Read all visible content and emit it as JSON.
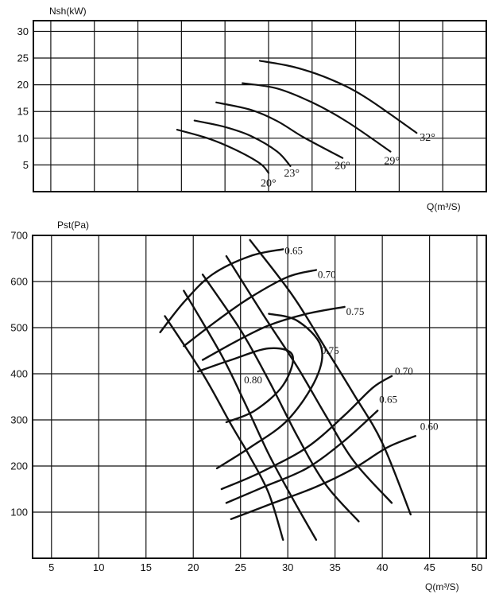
{
  "chart_data": [
    {
      "type": "line",
      "ylabel": "Nsh(kW)",
      "xlabel": "Q(m³/S)",
      "ylim": [
        0,
        32
      ],
      "xlim": [
        0,
        52
      ],
      "yticks": [
        "5",
        "10",
        "15",
        "20",
        "25",
        "30"
      ],
      "grid": true,
      "series": [
        {
          "name": "20°",
          "points": [
            [
              16.5,
              11.6
            ],
            [
              20,
              10.0
            ],
            [
              23,
              8.0
            ],
            [
              26,
              5.3
            ],
            [
              27,
              3.5
            ]
          ]
        },
        {
          "name": "23°",
          "points": [
            [
              18.5,
              13.3
            ],
            [
              22,
              12.1
            ],
            [
              25,
              10.4
            ],
            [
              28,
              7.5
            ],
            [
              29.5,
              4.8
            ]
          ]
        },
        {
          "name": "26°",
          "points": [
            [
              21,
              16.7
            ],
            [
              25,
              15.3
            ],
            [
              28,
              13.2
            ],
            [
              31,
              10.2
            ],
            [
              35.5,
              6.3
            ]
          ]
        },
        {
          "name": "29°",
          "points": [
            [
              24,
              20.3
            ],
            [
              28,
              19.3
            ],
            [
              32,
              16.7
            ],
            [
              36,
              13.1
            ],
            [
              41,
              7.5
            ]
          ]
        },
        {
          "name": "32°",
          "points": [
            [
              26,
              24.5
            ],
            [
              30,
              23.3
            ],
            [
              34,
              21.1
            ],
            [
              38,
              17.8
            ],
            [
              44,
              11.0
            ]
          ]
        }
      ]
    },
    {
      "type": "line",
      "ylabel": "Pst(Pa)",
      "xlabel": "Q(m³/S)",
      "xlim": [
        3,
        51
      ],
      "ylim": [
        0,
        700
      ],
      "xticks": [
        "5",
        "10",
        "15",
        "20",
        "25",
        "30",
        "35",
        "40",
        "45",
        "50"
      ],
      "yticks": [
        "100",
        "200",
        "300",
        "400",
        "500",
        "600",
        "700"
      ],
      "grid": true,
      "blade_angle_curves": [
        {
          "points": [
            [
              17,
              525
            ],
            [
              21,
              400
            ],
            [
              24,
              290
            ],
            [
              26,
              220
            ],
            [
              28,
              140
            ],
            [
              29.5,
              40
            ]
          ]
        },
        {
          "points": [
            [
              19,
              580
            ],
            [
              23,
              440
            ],
            [
              25.5,
              335
            ],
            [
              28,
              225
            ],
            [
              30.5,
              130
            ],
            [
              33,
              40
            ]
          ]
        },
        {
          "points": [
            [
              21,
              615
            ],
            [
              25,
              495
            ],
            [
              28,
              385
            ],
            [
              31,
              265
            ],
            [
              34,
              160
            ],
            [
              37.5,
              80
            ]
          ]
        },
        {
          "points": [
            [
              23.5,
              655
            ],
            [
              27.5,
              525
            ],
            [
              31,
              415
            ],
            [
              34,
              310
            ],
            [
              37,
              210
            ],
            [
              41,
              120
            ]
          ]
        },
        {
          "points": [
            [
              26,
              690
            ],
            [
              30.5,
              570
            ],
            [
              34,
              455
            ],
            [
              37,
              355
            ],
            [
              40,
              250
            ],
            [
              43,
              95
            ]
          ]
        }
      ],
      "efficiency_curves": [
        {
          "label": "0.65",
          "points": [
            [
              16.5,
              490
            ],
            [
              19,
              555
            ],
            [
              22,
              615
            ],
            [
              26,
              655
            ],
            [
              29.5,
              670
            ]
          ]
        },
        {
          "label": "0.70",
          "points": [
            [
              19,
              460
            ],
            [
              22.5,
              515
            ],
            [
              26,
              565
            ],
            [
              30,
              610
            ],
            [
              33,
              625
            ]
          ]
        },
        {
          "label": "0.75",
          "points": [
            [
              21,
              430
            ],
            [
              24.5,
              470
            ],
            [
              28,
              505
            ],
            [
              32,
              530
            ],
            [
              36,
              545
            ]
          ]
        },
        {
          "label": "0.80",
          "points": [
            [
              20.5,
              405
            ],
            [
              24,
              430
            ],
            [
              28,
              455
            ],
            [
              30.5,
              440
            ],
            [
              29.5,
              375
            ],
            [
              26.5,
              320
            ],
            [
              23.5,
              295
            ]
          ]
        },
        {
          "label": "0.75",
          "points": [
            [
              22.5,
              195
            ],
            [
              26,
              240
            ],
            [
              30,
              300
            ],
            [
              33,
              390
            ],
            [
              33.5,
              460
            ],
            [
              31,
              515
            ],
            [
              28,
              530
            ]
          ]
        },
        {
          "label": "0.70",
          "points": [
            [
              23,
              150
            ],
            [
              27,
              185
            ],
            [
              32,
              240
            ],
            [
              36,
              310
            ],
            [
              39,
              370
            ],
            [
              41,
              395
            ]
          ]
        },
        {
          "label": "0.65",
          "points": [
            [
              23.5,
              120
            ],
            [
              27.5,
              155
            ],
            [
              32,
              195
            ],
            [
              36,
              255
            ],
            [
              39.5,
              320
            ]
          ]
        },
        {
          "label": "0.60",
          "points": [
            [
              24,
              85
            ],
            [
              28.5,
              120
            ],
            [
              33,
              155
            ],
            [
              37,
              195
            ],
            [
              40.5,
              240
            ],
            [
              43.5,
              265
            ]
          ]
        }
      ]
    }
  ]
}
